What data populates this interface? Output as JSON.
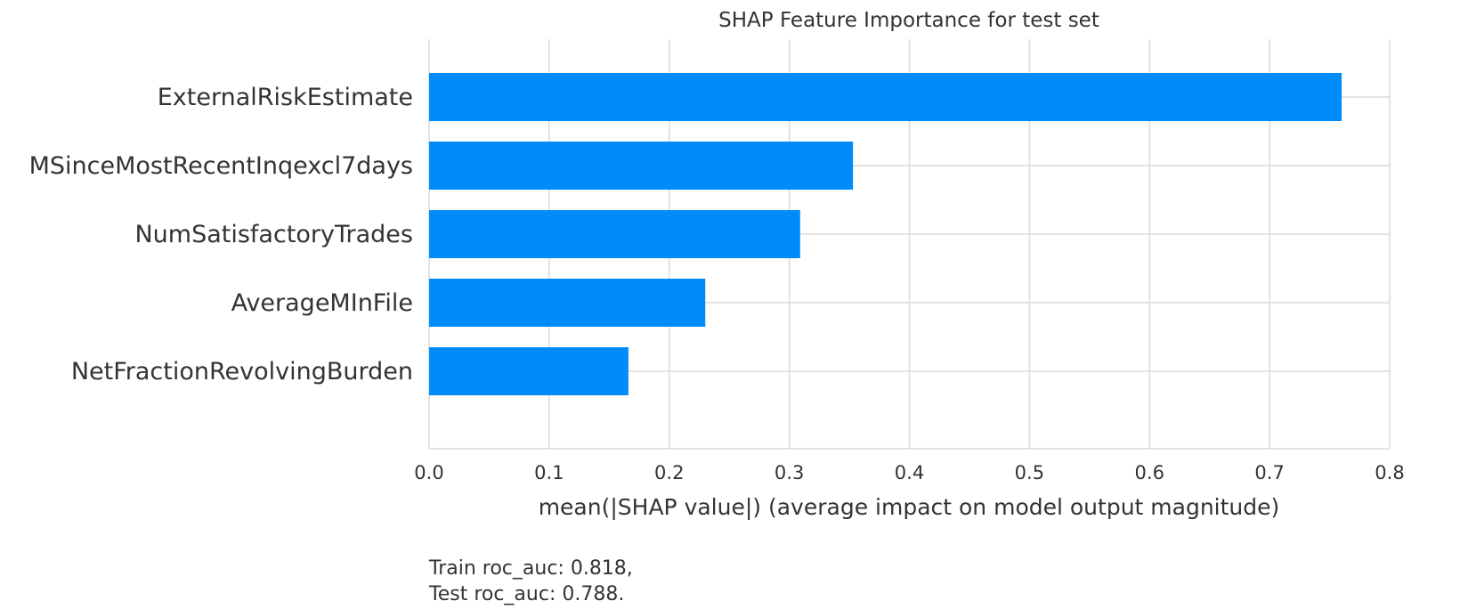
{
  "chart_data": {
    "type": "bar",
    "orientation": "horizontal",
    "title": "SHAP Feature Importance for test set",
    "xlabel": "mean(|SHAP value|) (average impact on model output magnitude)",
    "ylabel": "",
    "xlim": [
      0.0,
      0.8
    ],
    "xticks": [
      "0.0",
      "0.1",
      "0.2",
      "0.3",
      "0.4",
      "0.5",
      "0.6",
      "0.7",
      "0.8"
    ],
    "grid": true,
    "bar_color": "#008bfb",
    "categories": [
      "ExternalRiskEstimate",
      "MSinceMostRecentInqexcl7days",
      "NumSatisfactoryTrades",
      "AverageMInFile",
      "NetFractionRevolvingBurden"
    ],
    "values": [
      0.76,
      0.353,
      0.309,
      0.23,
      0.166
    ]
  },
  "footnote": {
    "train": "Train roc_auc: 0.818,",
    "test": "Test roc_auc: 0.788."
  }
}
